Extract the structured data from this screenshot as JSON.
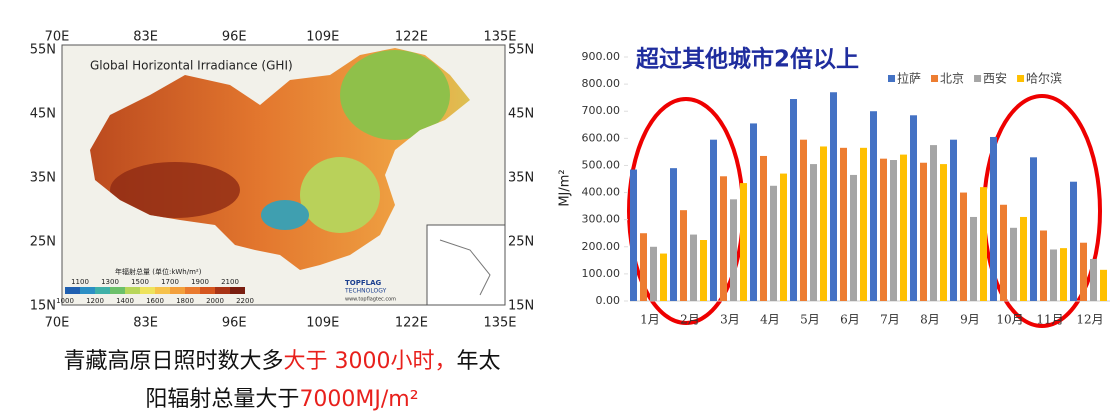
{
  "map": {
    "title": "Global Horizontal Irradiance (GHI)",
    "lon_labels": [
      "70E",
      "83E",
      "96E",
      "109E",
      "122E",
      "135E"
    ],
    "lat_labels": [
      "55N",
      "45N",
      "35N",
      "25N",
      "15N"
    ],
    "legend": {
      "title": "年辐射总量 (单位:kWh/m²)",
      "top_labels": [
        "1100",
        "1300",
        "1500",
        "1700",
        "1900",
        "2100"
      ],
      "bottom_labels": [
        "1000",
        "1200",
        "1400",
        "1600",
        "1800",
        "2000",
        "2200"
      ]
    },
    "logo": {
      "name": "TOPFLAG",
      "sub": "TECHNOLOGY",
      "url": "www.topflagtec.com"
    }
  },
  "caption": {
    "lines": [
      [
        {
          "text": "青藏高原日照时数大多",
          "color": "#111111"
        },
        {
          "text": "大于 3000小时，",
          "color": "#e8201c"
        },
        {
          "text": "年太",
          "color": "#111111"
        }
      ],
      [
        {
          "text": "阳辐射总量大于",
          "color": "#111111"
        },
        {
          "text": "7000MJ/m²",
          "color": "#e8201c"
        }
      ]
    ]
  },
  "chart_data": {
    "type": "bar",
    "title": "超过其他城市2倍以上",
    "y_label": "MJ/m²",
    "categories": [
      "1月",
      "2月",
      "3月",
      "4月",
      "5月",
      "6月",
      "7月",
      "8月",
      "9月",
      "10月",
      "11月",
      "12月"
    ],
    "series": [
      {
        "name": "拉萨",
        "color": "#4472c4",
        "values": [
          485,
          490,
          595,
          655,
          745,
          770,
          700,
          685,
          595,
          605,
          530,
          440
        ]
      },
      {
        "name": "北京",
        "color": "#ed7d31",
        "values": [
          250,
          335,
          460,
          535,
          595,
          565,
          525,
          510,
          400,
          355,
          260,
          215
        ]
      },
      {
        "name": "西安",
        "color": "#a5a5a5",
        "values": [
          200,
          245,
          375,
          425,
          505,
          465,
          520,
          575,
          310,
          270,
          190,
          155
        ]
      },
      {
        "name": "哈尔滨",
        "color": "#ffc000",
        "values": [
          175,
          225,
          435,
          470,
          570,
          565,
          540,
          505,
          420,
          310,
          195,
          115
        ]
      }
    ],
    "ylim": [
      0,
      900
    ],
    "yticks": [
      {
        "value": 0,
        "label": "0.00"
      },
      {
        "value": 100,
        "label": "100.00"
      },
      {
        "value": 200,
        "label": "200.00"
      },
      {
        "value": 300,
        "label": "300.00"
      },
      {
        "value": 400,
        "label": "400.00"
      },
      {
        "value": 500,
        "label": "500.00"
      },
      {
        "value": 600,
        "label": "600.00"
      },
      {
        "value": 700,
        "label": "700.00"
      },
      {
        "value": 800,
        "label": "800.00"
      },
      {
        "value": 900,
        "label": "900.00"
      }
    ],
    "legend_position": "top-right"
  }
}
